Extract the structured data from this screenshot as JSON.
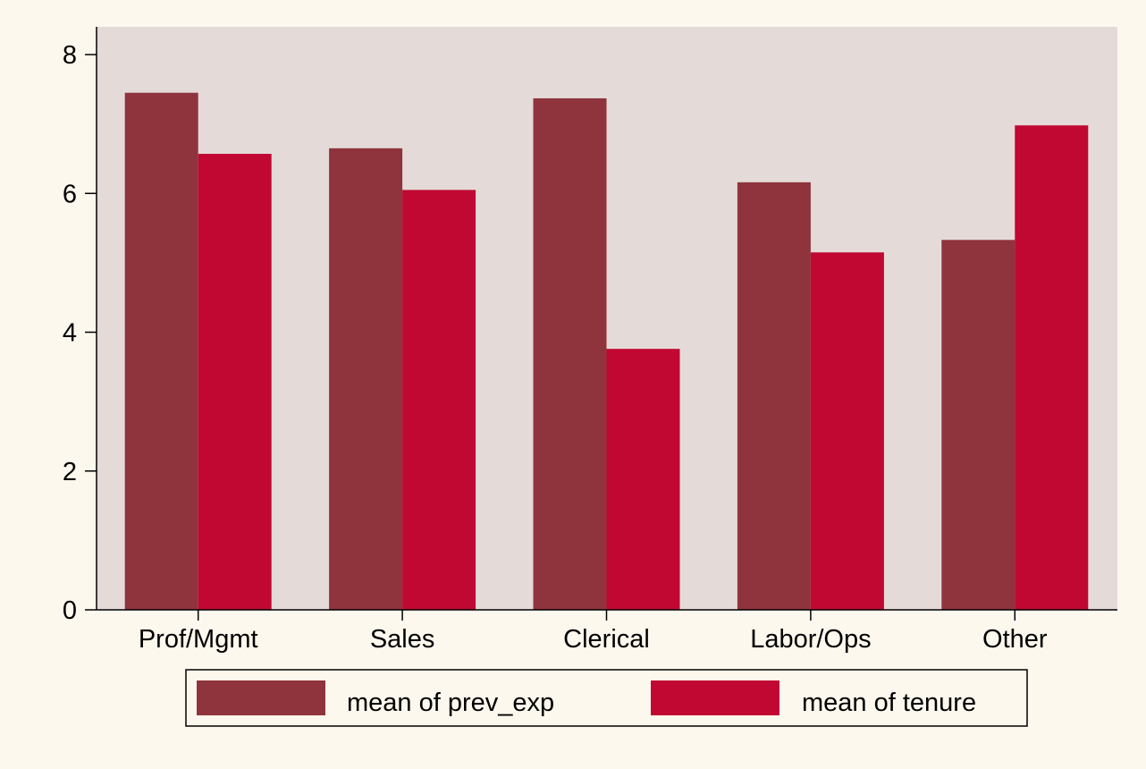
{
  "chart_data": {
    "type": "bar",
    "categories": [
      "Prof/Mgmt",
      "Sales",
      "Clerical",
      "Labor/Ops",
      "Other"
    ],
    "series": [
      {
        "name": "mean of prev_exp",
        "values": [
          7.45,
          6.65,
          7.37,
          6.16,
          5.33
        ]
      },
      {
        "name": "mean of tenure",
        "values": [
          6.57,
          6.05,
          3.76,
          5.15,
          6.98
        ]
      }
    ],
    "yticks": [
      0,
      2,
      4,
      6,
      8
    ],
    "ylim": [
      0,
      8.4
    ],
    "xlabel": "",
    "ylabel": "",
    "grid": false,
    "legend_position": "bottom"
  },
  "colors": {
    "page_background": "#fdf8ee",
    "plot_background": "#e4dbd9",
    "series": [
      "#8f343c",
      "#c00833"
    ],
    "axis": "#000000"
  }
}
